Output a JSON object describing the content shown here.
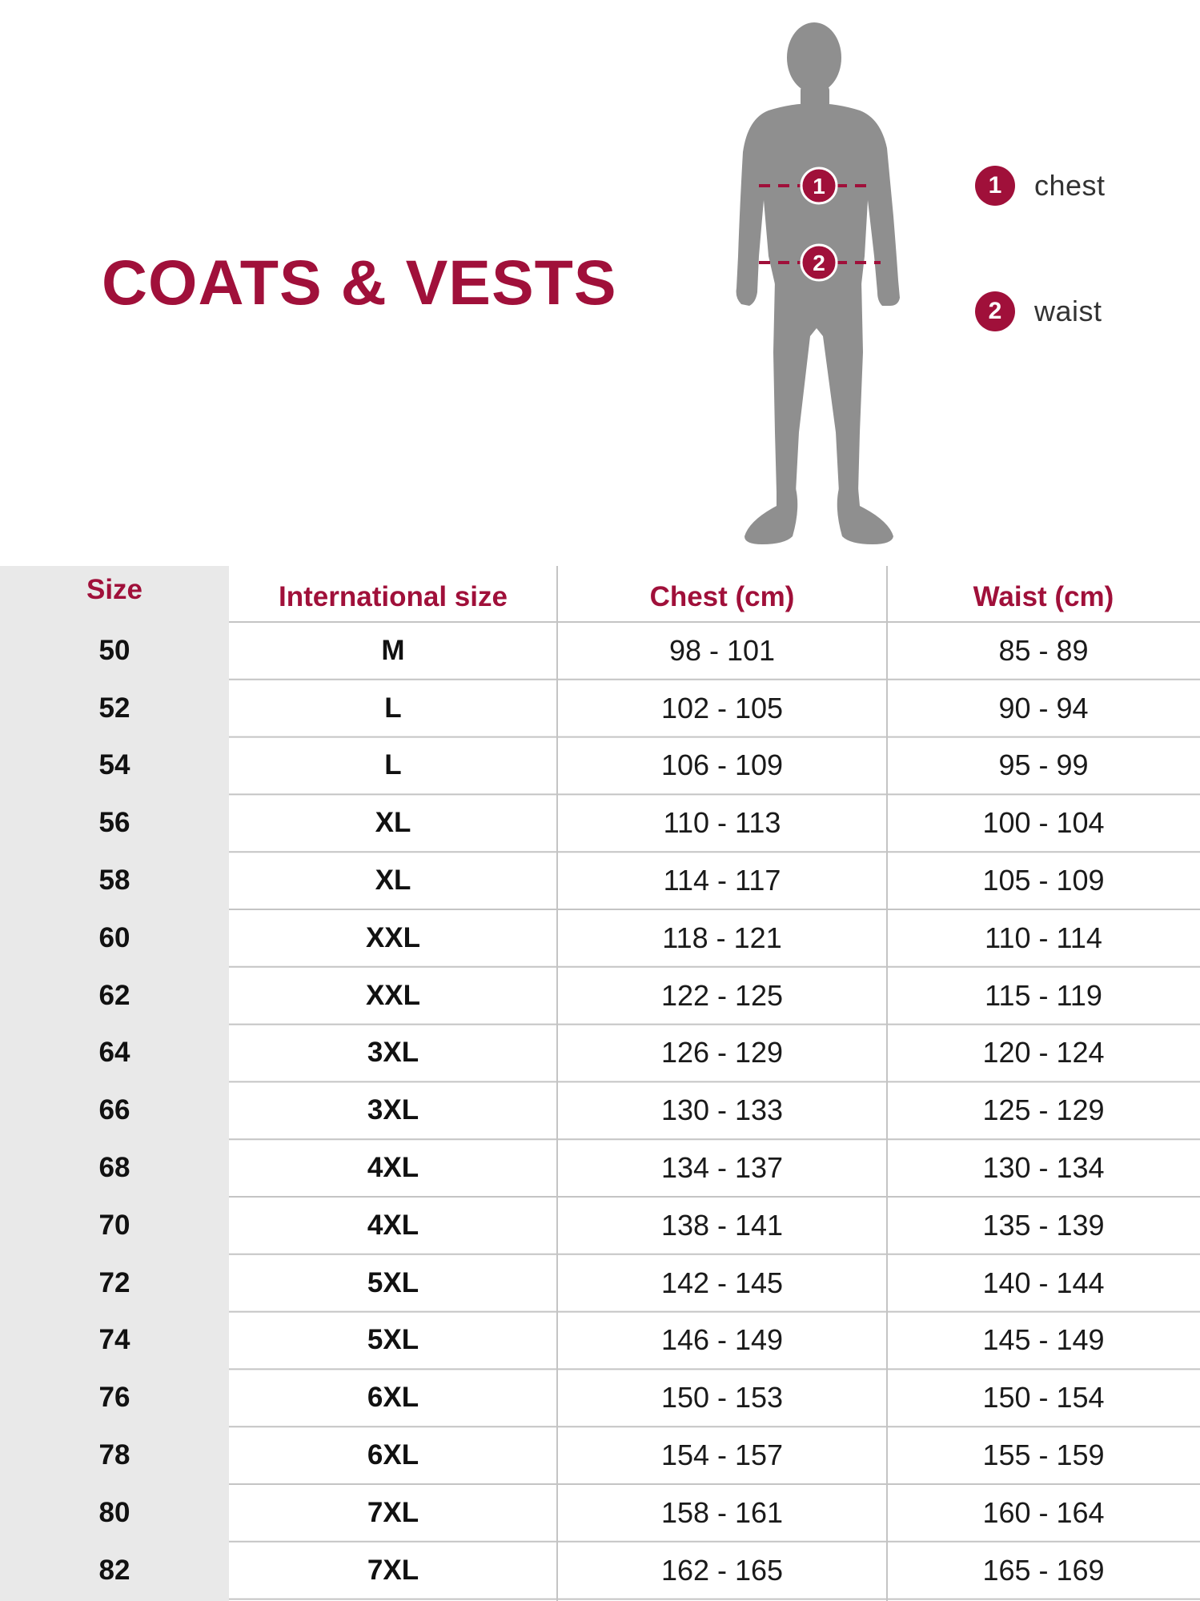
{
  "colors": {
    "accent": "#a0103a",
    "silhouette": "#8f8f8f",
    "size_column_bg": "#e9e9e9",
    "grid_line": "#c4c4c4",
    "marker_line": "#a0103a"
  },
  "title": "COATS & VESTS",
  "figure": {
    "icon": "person-silhouette-icon"
  },
  "measurements": [
    {
      "number": "1",
      "label": "chest"
    },
    {
      "number": "2",
      "label": "waist"
    }
  ],
  "table": {
    "headers": {
      "size": "Size",
      "international": "International size",
      "chest": "Chest (cm)",
      "waist": "Waist (cm)"
    },
    "rows": [
      {
        "size": "50",
        "international": "M",
        "chest": "98 - 101",
        "waist": "85 - 89"
      },
      {
        "size": "52",
        "international": "L",
        "chest": "102 - 105",
        "waist": "90 - 94"
      },
      {
        "size": "54",
        "international": "L",
        "chest": "106 - 109",
        "waist": "95 - 99"
      },
      {
        "size": "56",
        "international": "XL",
        "chest": "110 - 113",
        "waist": "100 - 104"
      },
      {
        "size": "58",
        "international": "XL",
        "chest": "114 - 117",
        "waist": "105 - 109"
      },
      {
        "size": "60",
        "international": "XXL",
        "chest": "118 - 121",
        "waist": "110 - 114"
      },
      {
        "size": "62",
        "international": "XXL",
        "chest": "122 - 125",
        "waist": "115 - 119"
      },
      {
        "size": "64",
        "international": "3XL",
        "chest": "126 - 129",
        "waist": "120 - 124"
      },
      {
        "size": "66",
        "international": "3XL",
        "chest": "130 - 133",
        "waist": "125 - 129"
      },
      {
        "size": "68",
        "international": "4XL",
        "chest": "134 - 137",
        "waist": "130 - 134"
      },
      {
        "size": "70",
        "international": "4XL",
        "chest": "138 - 141",
        "waist": "135 - 139"
      },
      {
        "size": "72",
        "international": "5XL",
        "chest": "142 - 145",
        "waist": "140 - 144"
      },
      {
        "size": "74",
        "international": "5XL",
        "chest": "146 - 149",
        "waist": "145 - 149"
      },
      {
        "size": "76",
        "international": "6XL",
        "chest": "150 - 153",
        "waist": "150 - 154"
      },
      {
        "size": "78",
        "international": "6XL",
        "chest": "154 - 157",
        "waist": "155 - 159"
      },
      {
        "size": "80",
        "international": "7XL",
        "chest": "158 - 161",
        "waist": "160 - 164"
      },
      {
        "size": "82",
        "international": "7XL",
        "chest": "162 - 165",
        "waist": "165 - 169"
      }
    ]
  }
}
